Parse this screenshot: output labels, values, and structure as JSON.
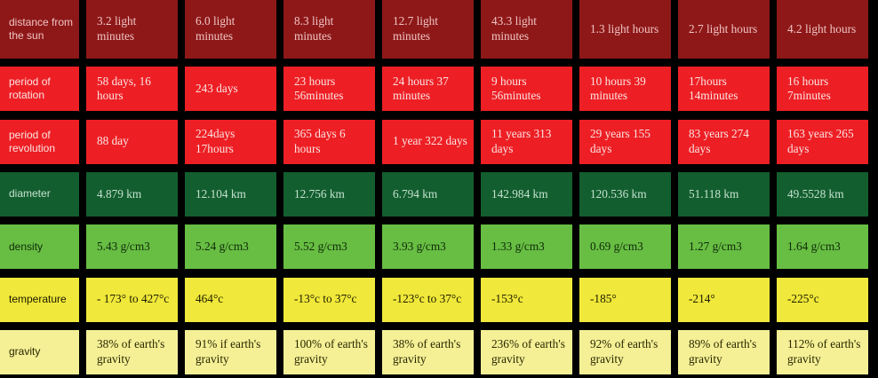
{
  "table": {
    "rows": [
      {
        "label": "distance from the sun",
        "cells": [
          "3.2 light minutes",
          "6.0 light minutes",
          "8.3 light minutes",
          "12.7 light minutes",
          "43.3 light minutes",
          "1.3 light hours",
          "2.7 light hours",
          "4.2 light hours"
        ]
      },
      {
        "label": "period of rotation",
        "cells": [
          "58 days, 16 hours",
          "243 days",
          "23 hours 56minutes",
          "24 hours 37 minutes",
          "9 hours 56minutes",
          "10 hours 39 minutes",
          "17hours 14minutes",
          "16 hours 7minutes"
        ]
      },
      {
        "label": "period of revolution",
        "cells": [
          "88 day",
          "224days 17hours",
          "365 days 6 hours",
          "1 year 322 days",
          "11 years 313 days",
          "29 years 155 days",
          "83 years 274 days",
          "163 years 265 days"
        ]
      },
      {
        "label": "diameter",
        "cells": [
          "4.879 km",
          "12.104 km",
          "12.756 km",
          "6.794 km",
          "142.984 km",
          "120.536 km",
          "51.118 km",
          "49.5528 km"
        ]
      },
      {
        "label": "density",
        "cells": [
          "5.43 g/cm3",
          "5.24 g/cm3",
          "5.52 g/cm3",
          "3.93 g/cm3",
          "1.33 g/cm3",
          "0.69 g/cm3",
          "1.27 g/cm3",
          "1.64 g/cm3"
        ]
      },
      {
        "label": "temperature",
        "cells": [
          "- 173° to 427°c",
          "464°c",
          "-13°c to 37°c",
          "-123°c to 37°c",
          "-153°c",
          "-185°",
          "-214°",
          "-225°c"
        ]
      },
      {
        "label": "gravity",
        "cells": [
          "38% of earth's gravity",
          "91% if earth's gravity",
          "100% of earth's gravity",
          "38% of earth's gravity",
          "236% of earth's gravity",
          "92% of earth's gravity",
          "89% of earth's gravity",
          "112% of earth's gravity"
        ]
      }
    ],
    "colors": {
      "distance": "#8e1818",
      "rotation": "#ed1f24",
      "revolution": "#ed1f24",
      "diameter": "#135e2f",
      "density": "#67be43",
      "temperature": "#f0e83a",
      "gravity": "#f5f096",
      "gridlines": "#000000"
    }
  }
}
